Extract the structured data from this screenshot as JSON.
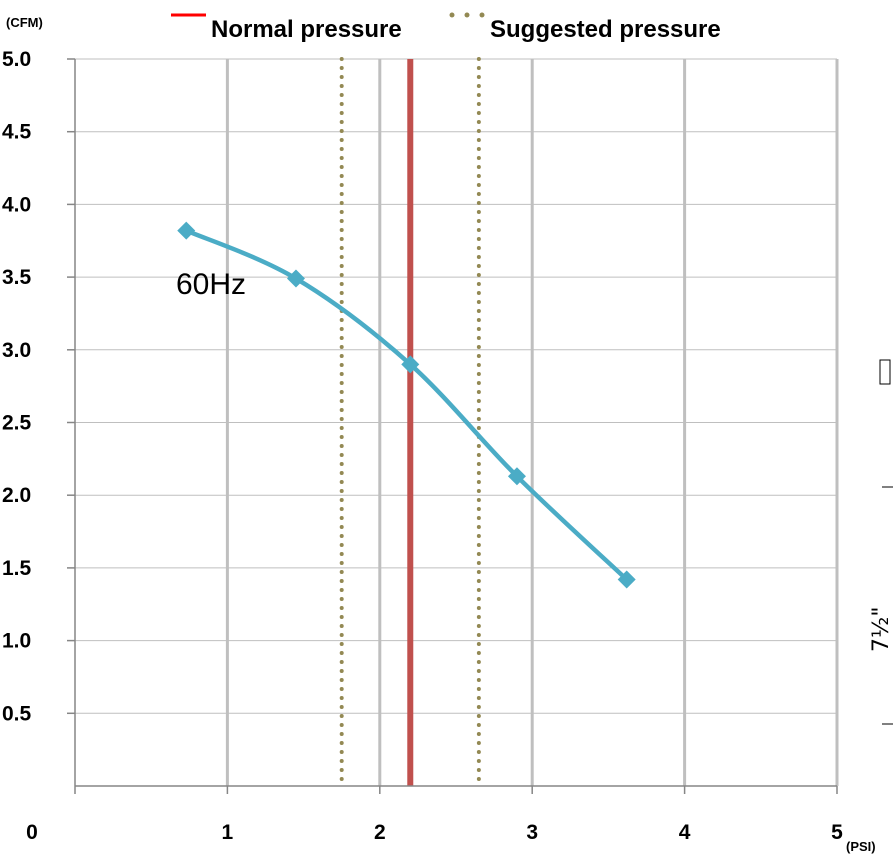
{
  "chart_data": {
    "type": "line",
    "x_unit": "(PSI)",
    "y_unit": "(CFM)",
    "xlim": [
      0,
      5
    ],
    "ylim": [
      0,
      5
    ],
    "x_ticks": [
      "0",
      "1",
      "2",
      "3",
      "4",
      "5"
    ],
    "y_ticks": [
      "0.5",
      "1.0",
      "1.5",
      "2.0",
      "2.5",
      "3.0",
      "3.5",
      "4.0",
      "4.5",
      "5.0"
    ],
    "grid": "vertical",
    "legend_position": "top",
    "series": [
      {
        "name": "60Hz",
        "color": "#4bacc6",
        "marker": "diamond",
        "x": [
          0.73,
          1.45,
          2.2,
          2.9,
          3.62
        ],
        "y": [
          3.82,
          3.49,
          2.9,
          2.13,
          1.42
        ]
      }
    ],
    "reference_lines": [
      {
        "name": "Normal pressure",
        "x": 2.2,
        "color": "#c0504d",
        "legend_color": "#ff0000",
        "style": "solid"
      },
      {
        "name": "Suggested pressure",
        "x": 1.75,
        "color": "#938953",
        "style": "dotted",
        "show_in_legend": true
      },
      {
        "name": "Suggested pressure",
        "x": 2.65,
        "color": "#938953",
        "style": "dotted",
        "show_in_legend": false
      }
    ],
    "side_label": "7½\""
  }
}
